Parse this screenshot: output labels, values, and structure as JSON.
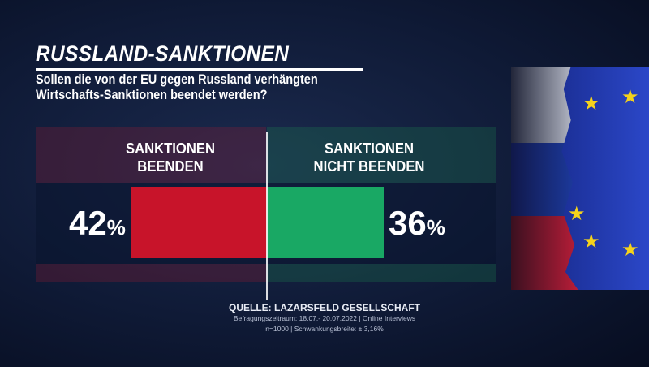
{
  "title": "RUSSLAND-SANKTIONEN",
  "question": [
    "Sollen die von der EU gegen Russland verhängten",
    "Wirtschafts-Sanktionen beendet werden?"
  ],
  "chart_data": {
    "type": "bar",
    "categories": [
      "SANKTIONEN BEENDEN",
      "SANKTIONEN NICHT BEENDEN"
    ],
    "category_lines": [
      [
        "SANKTIONEN",
        "BEENDEN"
      ],
      [
        "SANKTIONEN",
        "NICHT BEENDEN"
      ]
    ],
    "values": [
      42,
      36
    ],
    "unit": "%",
    "colors": [
      "#c8142a",
      "#19a864"
    ],
    "scale_max": 50
  },
  "source": {
    "main": "QUELLE:  LAZARSFELD GESELLSCHAFT",
    "line1": "Befragungszeitraum: 18.07.- 20.07.2022 | Online Interviews",
    "line2": "n=1000 |  Schwankungsbreite: ± 3,16%"
  },
  "decor": {
    "flags": [
      "russia-flag",
      "eu-flag"
    ],
    "star_icon": "★"
  }
}
